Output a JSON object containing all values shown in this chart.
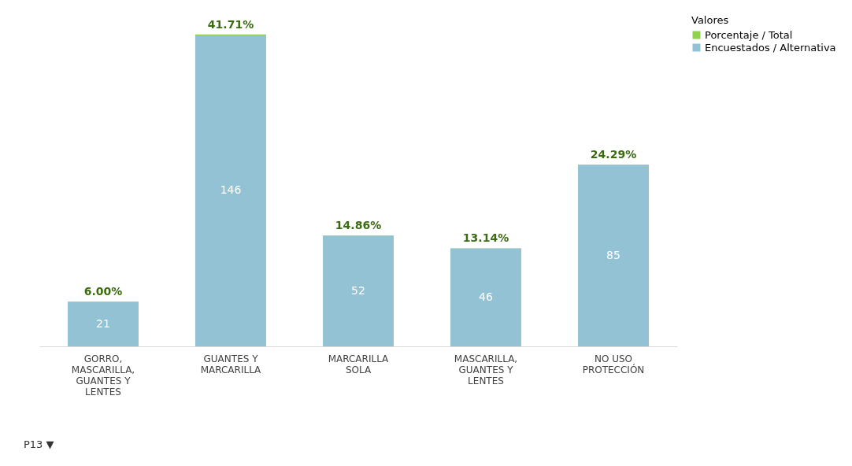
{
  "chart_data": {
    "type": "bar",
    "stacked": true,
    "categories": [
      "GORRO, MASCARILLA, GUANTES Y LENTES",
      "GUANTES Y MARCARILLA",
      "MARCARILLA SOLA",
      "MASCARILLA, GUANTES Y LENTES",
      "NO USO PROTECCIÓN"
    ],
    "series": [
      {
        "name": "Encuestados / Alternativa",
        "color": "#92c2d4",
        "values": [
          21,
          146,
          52,
          46,
          85
        ],
        "value_labels": [
          "21",
          "146",
          "52",
          "46",
          "85"
        ]
      },
      {
        "name": "Porcentaje / Total",
        "color": "#92d050",
        "values": [
          0.06,
          0.4171,
          0.1486,
          0.1314,
          0.2429
        ],
        "value_labels": [
          "6.00%",
          "41.71%",
          "14.86%",
          "13.14%",
          "24.29%"
        ]
      }
    ],
    "legend_title": "Valores",
    "legend": "right",
    "annotations": [
      "P13 ▼"
    ]
  }
}
